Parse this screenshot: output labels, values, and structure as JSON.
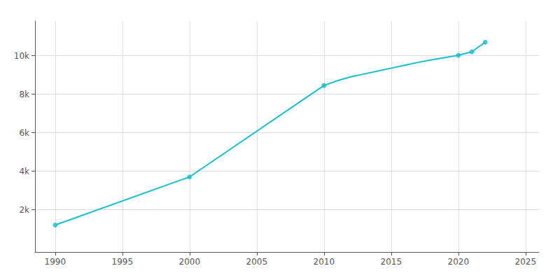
{
  "chart_data": {
    "type": "line",
    "series": [
      {
        "type": "line",
        "color": "#17becf",
        "x": [
          1990,
          2000,
          2010,
          2011,
          2012,
          2013,
          2014,
          2015,
          2016,
          2017,
          2018,
          2019,
          2020,
          2021,
          2022
        ],
        "values": [
          1200,
          3700,
          8450,
          8700,
          8900,
          9050,
          9200,
          9350,
          9500,
          9650,
          9780,
          9900,
          10020,
          10200,
          10700
        ]
      },
      {
        "type": "scatter",
        "color": "#17becf",
        "marker": "circle",
        "x": [
          1990,
          2000,
          2010,
          2020,
          2021,
          2022
        ],
        "values": [
          1200,
          3700,
          8450,
          10020,
          10200,
          10700
        ]
      }
    ],
    "xlim": [
      1988.5,
      2026
    ],
    "xticks": [
      1990,
      1995,
      2000,
      2005,
      2010,
      2015,
      2020,
      2025
    ],
    "ylim": [
      -200,
      11800
    ],
    "yticks": [
      {
        "value": 2000,
        "label": "2k"
      },
      {
        "value": 4000,
        "label": "4k"
      },
      {
        "value": 6000,
        "label": "6k"
      },
      {
        "value": 8000,
        "label": "8k"
      },
      {
        "value": 10000,
        "label": "10k"
      }
    ],
    "grid": true
  }
}
